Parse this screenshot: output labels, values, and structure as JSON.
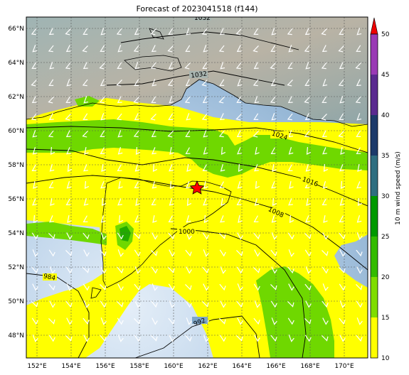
{
  "title": "Forecast of 2023041518 (f144)",
  "map": {
    "lon_ticks": [
      "152°E",
      "154°E",
      "156°E",
      "158°E",
      "160°E",
      "162°E",
      "164°E",
      "166°E",
      "168°E",
      "170°E"
    ],
    "lat_ticks": [
      "66°N",
      "64°N",
      "62°N",
      "60°N",
      "58°N",
      "56°N",
      "54°N",
      "52°N",
      "50°N",
      "48°N"
    ],
    "contour_labels": [
      "1032",
      "1032",
      "1024",
      "1016",
      "1008",
      "1000",
      "984",
      "992"
    ],
    "marker": "red-star"
  },
  "colorbar": {
    "label": "10 m wind speed (m/s)",
    "ticks": [
      "10",
      "15",
      "20",
      "25",
      "30",
      "35",
      "40",
      "45",
      "50"
    ],
    "colors": {
      "10-15": "#ffff00",
      "15-20": "#7fdd00",
      "20-25": "#33bb00",
      "25-30": "#009900",
      "30-35": "#2e6e80",
      "35-40": "#1c3a6a",
      "40-45": "#5a2a90",
      "45-50": "#9a3ab5",
      "extend": "#ee0000"
    }
  }
}
